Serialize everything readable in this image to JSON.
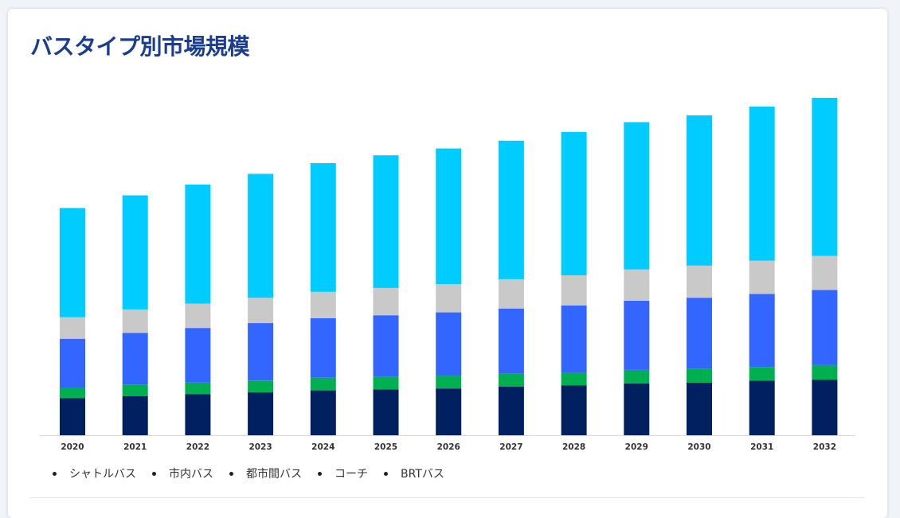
{
  "title": "バスタイプ別市場規模",
  "chart_data": {
    "type": "bar",
    "stacked": true,
    "categories": [
      "2020",
      "2021",
      "2022",
      "2023",
      "2024",
      "2025",
      "2026",
      "2027",
      "2028",
      "2029",
      "2030",
      "2031",
      "2032"
    ],
    "series": [
      {
        "name": "シャトルバス",
        "color": "#002060",
        "values": [
          38,
          40,
          42,
          44,
          46,
          47,
          48,
          50,
          51,
          53,
          54,
          56,
          57
        ]
      },
      {
        "name": "市内バス",
        "color": "#00b050",
        "values": [
          11,
          12,
          12,
          12,
          13,
          13,
          13,
          13,
          13,
          14,
          14,
          14,
          15
        ]
      },
      {
        "name": "都市間バス",
        "color": "#3366ff",
        "values": [
          50,
          53,
          56,
          59,
          61,
          63,
          65,
          67,
          69,
          71,
          73,
          75,
          77
        ]
      },
      {
        "name": "コーチ",
        "color": "#c9c9c9",
        "values": [
          22,
          24,
          25,
          26,
          27,
          28,
          29,
          30,
          31,
          32,
          33,
          34,
          35
        ]
      },
      {
        "name": "BRTバス",
        "color": "#00ccff",
        "values": [
          112,
          117,
          122,
          127,
          132,
          136,
          139,
          142,
          147,
          151,
          154,
          158,
          162
        ]
      }
    ],
    "ylim": [
      0,
      350
    ],
    "grid": false,
    "legend": "bottom-left"
  }
}
